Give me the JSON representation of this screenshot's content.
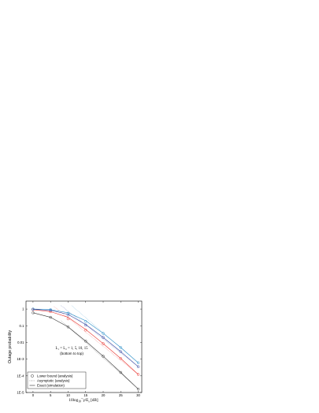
{
  "chart_data": {
    "type": "line",
    "ylabel": "Outage probability",
    "xlabel_parts": {
      "pre": "10log",
      "sub1": "10",
      "mid": "¯γ/E",
      "sub2": "s",
      "post": " [dB]"
    },
    "x_ticks": [
      0,
      5,
      10,
      15,
      20,
      25,
      30
    ],
    "y_ticks": [
      {
        "value": 1,
        "label": "1"
      },
      {
        "value": 0.1,
        "label": "0.1"
      },
      {
        "value": 0.01,
        "label": "0.01"
      },
      {
        "value": 0.001,
        "label": "1E-3"
      },
      {
        "value": 0.0001,
        "label": "1E-4"
      },
      {
        "value": 1e-05,
        "label": "1E-5"
      }
    ],
    "xlim": [
      -2,
      31
    ],
    "ylim": [
      1e-05,
      3
    ],
    "y_scale": "log",
    "legend": {
      "placement": "bottom-left",
      "entries": [
        {
          "label": "Lower bound (analysis)",
          "style": "circle-marker"
        },
        {
          "label": "Asymptotic (analysis)",
          "style": "dotted-line"
        },
        {
          "label": "Exact (simulation)",
          "style": "solid-line"
        }
      ]
    },
    "annotation": {
      "line1": "L₁ = L₂ = 1, 5, 10, 15",
      "line2": "(bottom to top)"
    },
    "series": [
      {
        "color": "#333333",
        "x": [
          0,
          5,
          10,
          15,
          20,
          25,
          30
        ],
        "exact": [
          0.6,
          0.32,
          0.085,
          0.012,
          0.0015,
          0.00016,
          1.6e-05
        ],
        "lower_bound": [
          0.6,
          0.32,
          0.085,
          0.012,
          0.0015,
          0.00016,
          1.6e-05
        ],
        "asymptotic": [
          [
            8,
            0.2
          ],
          [
            30,
            1.6e-05
          ]
        ]
      },
      {
        "color": "#e8322d",
        "x": [
          0,
          5,
          10,
          15,
          20,
          25,
          30
        ],
        "exact": [
          0.93,
          0.7,
          0.32,
          0.06,
          0.0085,
          0.0011,
          0.00012
        ],
        "lower_bound": [
          0.93,
          0.7,
          0.26,
          0.055,
          0.0085,
          0.0011,
          0.00012
        ],
        "asymptotic": [
          [
            6,
            1.4
          ],
          [
            30,
            0.00012
          ]
        ]
      },
      {
        "color": "#2e3f9e",
        "x": [
          0,
          5,
          10,
          15,
          20,
          25,
          30
        ],
        "exact": [
          0.97,
          0.85,
          0.48,
          0.12,
          0.02,
          0.0028,
          0.00035
        ],
        "lower_bound": [
          0.97,
          0.85,
          0.44,
          0.11,
          0.02,
          0.0028,
          0.00035
        ],
        "asymptotic": [
          [
            8,
            1.6
          ],
          [
            30,
            0.00035
          ]
        ]
      },
      {
        "color": "#2a8fc8",
        "x": [
          0,
          5,
          10,
          15,
          20,
          25,
          30
        ],
        "exact": [
          1,
          0.92,
          0.6,
          0.2,
          0.035,
          0.005,
          0.0006
        ],
        "lower_bound": [
          1,
          0.92,
          0.56,
          0.18,
          0.035,
          0.005,
          0.0006
        ],
        "asymptotic": [
          [
            11,
            1.6
          ],
          [
            30,
            0.0006
          ]
        ]
      }
    ]
  }
}
